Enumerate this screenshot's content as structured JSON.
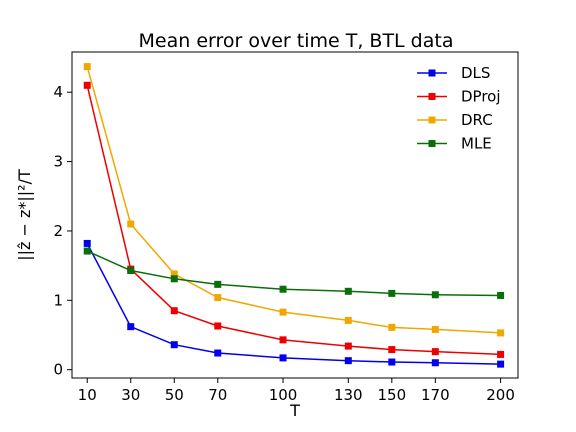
{
  "chart_data": {
    "type": "line",
    "title": "Mean error over time T, BTL data",
    "xlabel": "T",
    "ylabel": "||ẑ − z*||²/T",
    "x": [
      10,
      30,
      50,
      70,
      100,
      130,
      150,
      170,
      200
    ],
    "x_ticks": [
      "10",
      "30",
      "50",
      "70",
      "100",
      "130",
      "150",
      "170",
      "200"
    ],
    "y_ticks": [
      "0",
      "1",
      "2",
      "3",
      "4"
    ],
    "xlim": [
      3,
      208
    ],
    "ylim": [
      -0.12,
      4.58
    ],
    "grid": false,
    "legend_position": "top-right",
    "series": [
      {
        "name": "DLS",
        "color": "#0000ee",
        "values": [
          1.82,
          0.62,
          0.36,
          0.24,
          0.17,
          0.13,
          0.11,
          0.1,
          0.08
        ]
      },
      {
        "name": "DProj",
        "color": "#ee0000",
        "values": [
          4.1,
          1.45,
          0.85,
          0.63,
          0.43,
          0.34,
          0.29,
          0.26,
          0.22
        ]
      },
      {
        "name": "DRC",
        "color": "#f0a800",
        "values": [
          4.37,
          2.1,
          1.38,
          1.04,
          0.83,
          0.71,
          0.61,
          0.58,
          0.53
        ]
      },
      {
        "name": "MLE",
        "color": "#0a6e0a",
        "values": [
          1.71,
          1.43,
          1.31,
          1.23,
          1.16,
          1.13,
          1.1,
          1.08,
          1.07
        ]
      }
    ]
  }
}
